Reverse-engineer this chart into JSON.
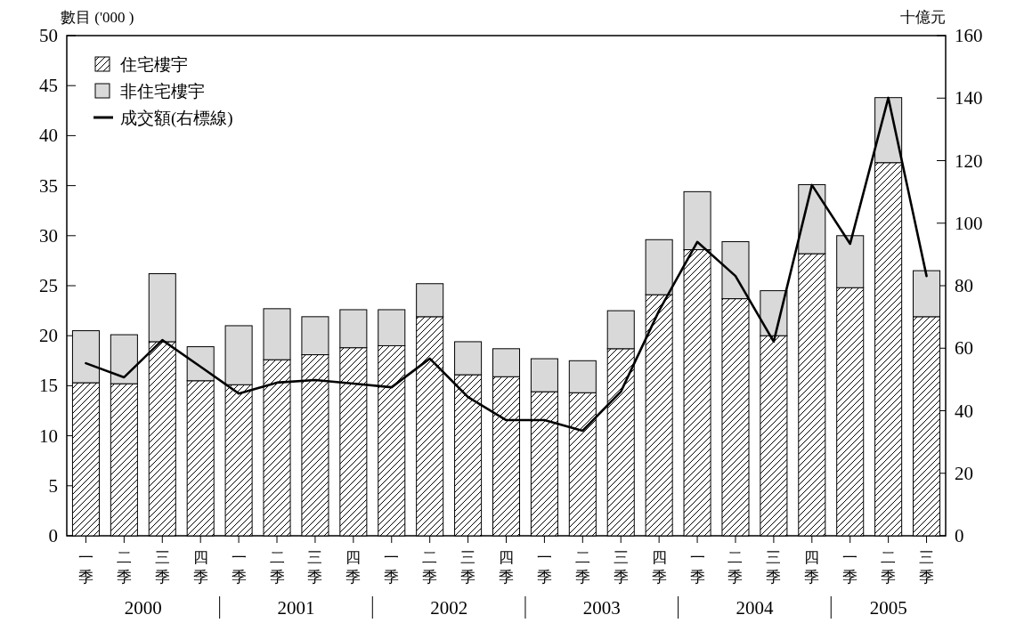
{
  "chart_data": {
    "type": "bar",
    "stacked": true,
    "ylabel": "數目 ('000 )",
    "y2label": "十億元",
    "categories": [
      "一季",
      "二季",
      "三季",
      "四季",
      "一季",
      "二季",
      "三季",
      "四季",
      "一季",
      "二季",
      "三季",
      "四季",
      "一季",
      "二季",
      "三季",
      "四季",
      "一季",
      "二季",
      "三季",
      "四季",
      "一季",
      "二季",
      "三季"
    ],
    "series": [
      {
        "name": "住宅樓宇",
        "color": "#000000",
        "values": [
          15.3,
          15.2,
          19.4,
          15.5,
          15.1,
          17.6,
          18.1,
          18.8,
          19.0,
          21.9,
          16.1,
          15.9,
          14.4,
          14.3,
          18.7,
          24.1,
          28.6,
          23.7,
          20.0,
          28.2,
          24.8,
          37.3,
          21.9
        ]
      },
      {
        "name": "非住宅樓宇",
        "color": "#d9d9d9",
        "values": [
          5.2,
          4.9,
          6.8,
          3.4,
          5.9,
          5.1,
          3.8,
          3.8,
          3.6,
          3.3,
          3.3,
          2.8,
          3.3,
          3.2,
          3.8,
          5.5,
          5.8,
          5.7,
          4.5,
          6.9,
          5.2,
          6.5,
          4.6
        ]
      },
      {
        "name": "成交額(右標線)",
        "type": "line",
        "axis": "y2",
        "color": "#000000",
        "values": [
          55.2,
          50.7,
          62.6,
          54.1,
          45.5,
          49.0,
          49.8,
          48.7,
          47.5,
          56.7,
          44.4,
          37.0,
          37.0,
          33.6,
          46.1,
          72.0,
          94.0,
          83.1,
          62.1,
          112.2,
          93.4,
          140.1,
          83.1
        ]
      }
    ],
    "ylim": [
      0,
      50
    ],
    "yticks": [
      0,
      5,
      10,
      15,
      20,
      25,
      30,
      35,
      40,
      45,
      50
    ],
    "y2lim": [
      0,
      160
    ],
    "y2ticks": [
      0,
      20,
      40,
      60,
      80,
      100,
      120,
      140,
      160
    ],
    "annotations": [
      "2000",
      "2001",
      "2002",
      "2003",
      "2004",
      "2005"
    ],
    "legend": "top left",
    "marker": "none",
    "line_style": "solid",
    "grid": false
  }
}
